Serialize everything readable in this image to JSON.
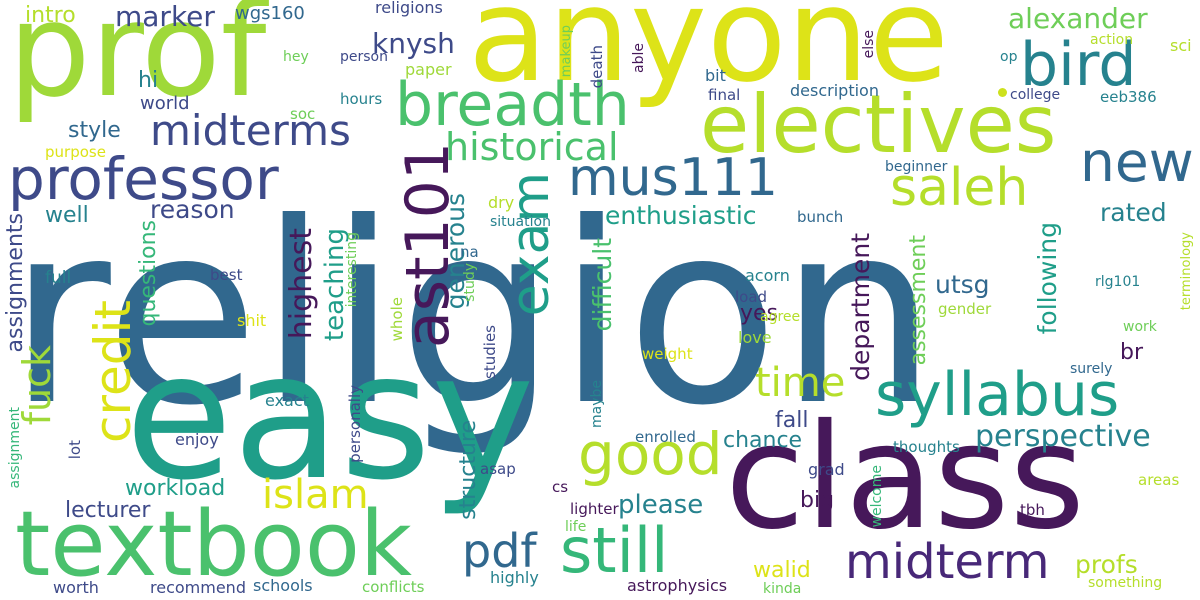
{
  "palette": {
    "background": "#ffffff",
    "dark_purple": "#46185a",
    "purple": "#482878",
    "indigo": "#3e4a89",
    "blue": "#31688e",
    "teal_blue": "#26828e",
    "teal": "#1f9e89",
    "green_teal": "#35b779",
    "green": "#6ece58",
    "lime": "#b5de2b",
    "yellow": "#e3e418"
  },
  "words": [
    {
      "text": "religion",
      "color": "#31688e"
    },
    {
      "text": "easy",
      "color": "#1f9e89"
    },
    {
      "text": "class",
      "color": "#46185a"
    },
    {
      "text": "prof",
      "color": "#9fd939"
    },
    {
      "text": "anyone",
      "color": "#dde318"
    },
    {
      "text": "electives",
      "color": "#b5de2b"
    },
    {
      "text": "textbook",
      "color": "#4ac16d"
    },
    {
      "text": "bird",
      "color": "#26828e"
    },
    {
      "text": "breadth",
      "color": "#4ac16d"
    },
    {
      "text": "professor",
      "color": "#3e4a89"
    },
    {
      "text": "syllabus",
      "color": "#1f9e89"
    },
    {
      "text": "midterms",
      "color": "#3e4a89"
    },
    {
      "text": "ast101",
      "color": "#46185a"
    },
    {
      "text": "exam",
      "color": "#1f9e89"
    },
    {
      "text": "mus111",
      "color": "#31688e"
    },
    {
      "text": "new",
      "color": "#31688e"
    },
    {
      "text": "historical",
      "color": "#4ac16d"
    },
    {
      "text": "saleh",
      "color": "#b5de2b"
    },
    {
      "text": "good",
      "color": "#b5de2b"
    },
    {
      "text": "still",
      "color": "#35b779"
    },
    {
      "text": "pdf",
      "color": "#31688e"
    },
    {
      "text": "midterm",
      "color": "#482878"
    },
    {
      "text": "islam",
      "color": "#dde318"
    },
    {
      "text": "credit",
      "color": "#dde318"
    },
    {
      "text": "fuck",
      "color": "#9fd939"
    },
    {
      "text": "time",
      "color": "#b5de2b"
    },
    {
      "text": "perspective",
      "color": "#26828e"
    },
    {
      "text": "alexander",
      "color": "#6ece58"
    },
    {
      "text": "knysh",
      "color": "#3e4a89"
    },
    {
      "text": "marker",
      "color": "#3e4a89"
    },
    {
      "text": "intro",
      "color": "#b5de2b"
    },
    {
      "text": "wgs160",
      "color": "#31688e"
    },
    {
      "text": "religions",
      "color": "#3e4a89"
    },
    {
      "text": "hi",
      "color": "#26828e"
    },
    {
      "text": "world",
      "color": "#3e4a89"
    },
    {
      "text": "style",
      "color": "#31688e"
    },
    {
      "text": "reason",
      "color": "#3e4a89"
    },
    {
      "text": "well",
      "color": "#26828e"
    },
    {
      "text": "enthusiastic",
      "color": "#1f9e89"
    },
    {
      "text": "rated",
      "color": "#26828e"
    },
    {
      "text": "highest",
      "color": "#46185a"
    },
    {
      "text": "teaching",
      "color": "#1f9e89"
    },
    {
      "text": "generous",
      "color": "#26828e"
    },
    {
      "text": "difficult",
      "color": "#4ac16d"
    },
    {
      "text": "department",
      "color": "#46185a"
    },
    {
      "text": "assessment",
      "color": "#6ece58"
    },
    {
      "text": "following",
      "color": "#1f9e89"
    },
    {
      "text": "utsg",
      "color": "#31688e"
    },
    {
      "text": "br",
      "color": "#46185a"
    },
    {
      "text": "yes",
      "color": "#46185a"
    },
    {
      "text": "fall",
      "color": "#3e4a89"
    },
    {
      "text": "chance",
      "color": "#26828e"
    },
    {
      "text": "please",
      "color": "#26828e"
    },
    {
      "text": "big",
      "color": "#46185a"
    },
    {
      "text": "walid",
      "color": "#dde318"
    },
    {
      "text": "profs",
      "color": "#b5de2b"
    },
    {
      "text": "workload",
      "color": "#1f9e89"
    },
    {
      "text": "lecturer",
      "color": "#3e4a89"
    },
    {
      "text": "assignments",
      "color": "#3e4a89"
    },
    {
      "text": "questions",
      "color": "#35b779"
    },
    {
      "text": "structure",
      "color": "#26828e"
    },
    {
      "text": "dry",
      "color": "#b5de2b"
    },
    {
      "text": "situation",
      "color": "#26828e"
    },
    {
      "text": "na",
      "color": "#31688e"
    },
    {
      "text": "bunch",
      "color": "#31688e"
    },
    {
      "text": "beginner",
      "color": "#31688e"
    },
    {
      "text": "acorn",
      "color": "#26828e"
    },
    {
      "text": "load",
      "color": "#3e4a89"
    },
    {
      "text": "agree",
      "color": "#b5de2b"
    },
    {
      "text": "love",
      "color": "#9fd939"
    },
    {
      "text": "weight",
      "color": "#dde318"
    },
    {
      "text": "rlg101",
      "color": "#26828e"
    },
    {
      "text": "gender",
      "color": "#9fd939"
    },
    {
      "text": "work",
      "color": "#6ece58"
    },
    {
      "text": "surely",
      "color": "#31688e"
    },
    {
      "text": "terminology",
      "color": "#b5de2b"
    },
    {
      "text": "full",
      "color": "#26828e"
    },
    {
      "text": "best",
      "color": "#3e4a89"
    },
    {
      "text": "shit",
      "color": "#dde318"
    },
    {
      "text": "interesting",
      "color": "#6ece58"
    },
    {
      "text": "study",
      "color": "#6ece58"
    },
    {
      "text": "whole",
      "color": "#9fd939"
    },
    {
      "text": "studies",
      "color": "#3e4a89"
    },
    {
      "text": "hey",
      "color": "#6ece58"
    },
    {
      "text": "person",
      "color": "#3e4a89"
    },
    {
      "text": "paper",
      "color": "#9fd939"
    },
    {
      "text": "hours",
      "color": "#26828e"
    },
    {
      "text": "soc",
      "color": "#6ece58"
    },
    {
      "text": "makeup",
      "color": "#6ece58"
    },
    {
      "text": "death",
      "color": "#3e4a89"
    },
    {
      "text": "able",
      "color": "#46185a"
    },
    {
      "text": "bit",
      "color": "#31688e"
    },
    {
      "text": "final",
      "color": "#3e4a89"
    },
    {
      "text": "description",
      "color": "#31688e"
    },
    {
      "text": "college",
      "color": "#3e4a89"
    },
    {
      "text": "eeb386",
      "color": "#26828e"
    },
    {
      "text": "op",
      "color": "#26828e"
    },
    {
      "text": "else",
      "color": "#46185a"
    },
    {
      "text": "action",
      "color": "#b5de2b"
    },
    {
      "text": "sci",
      "color": "#b5de2b"
    },
    {
      "text": "purpose",
      "color": "#dde318"
    },
    {
      "text": "exact",
      "color": "#26828e"
    },
    {
      "text": "enjoy",
      "color": "#3e4a89"
    },
    {
      "text": "personally",
      "color": "#3e4a89"
    },
    {
      "text": "maybe",
      "color": "#26828e"
    },
    {
      "text": "enrolled",
      "color": "#31688e"
    },
    {
      "text": "thoughts",
      "color": "#26828e"
    },
    {
      "text": "welcome",
      "color": "#35b779"
    },
    {
      "text": "grad",
      "color": "#3e4a89"
    },
    {
      "text": "areas",
      "color": "#b5de2b"
    },
    {
      "text": "asap",
      "color": "#3e4a89"
    },
    {
      "text": "cs",
      "color": "#46185a"
    },
    {
      "text": "lighter",
      "color": "#46185a"
    },
    {
      "text": "life",
      "color": "#6ece58"
    },
    {
      "text": "tbh",
      "color": "#46185a"
    },
    {
      "text": "assignment",
      "color": "#35b779"
    },
    {
      "text": "lot",
      "color": "#3e4a89"
    },
    {
      "text": "highly",
      "color": "#26828e"
    },
    {
      "text": "worth",
      "color": "#3e4a89"
    },
    {
      "text": "recommend",
      "color": "#3e4a89"
    },
    {
      "text": "schools",
      "color": "#31688e"
    },
    {
      "text": "conflicts",
      "color": "#6ece58"
    },
    {
      "text": "astrophysics",
      "color": "#46185a"
    },
    {
      "text": "kinda",
      "color": "#6ece58"
    },
    {
      "text": "something",
      "color": "#b5de2b"
    }
  ]
}
